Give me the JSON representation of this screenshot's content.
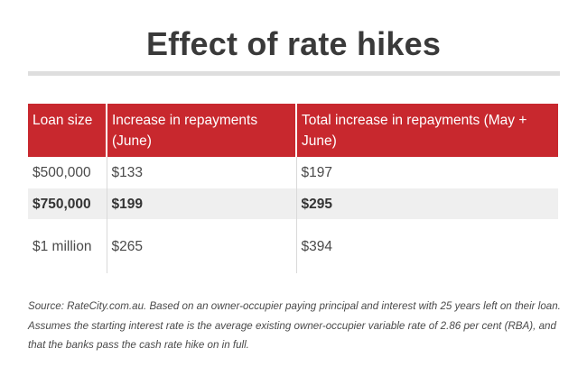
{
  "title": "Effect of rate hikes",
  "table": {
    "headers": [
      "Loan size",
      "Increase in repayments (June)",
      "Total increase in repayments (May + June)"
    ],
    "rows": [
      [
        "$500,000",
        "$133",
        "$197"
      ],
      [
        "$750,000",
        "$199",
        "$295"
      ],
      [
        "$1 million",
        "$265",
        "$394"
      ]
    ]
  },
  "source": "Source: RateCity.com.au. Based on an owner-occupier paying principal and interest with 25 years left on their loan. Assumes the starting interest rate is the average existing owner-occupier variable rate of 2.86 per cent (RBA), and that the banks pass the cash rate hike on in full.",
  "colors": {
    "header_bg": "#c8282e",
    "stripe_bg": "#efefef",
    "rule": "#dedede"
  }
}
